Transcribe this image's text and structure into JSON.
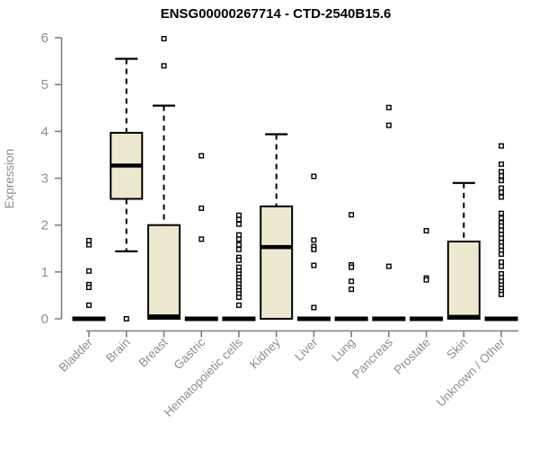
{
  "chart_data": {
    "type": "boxplot",
    "title": "ENSG00000267714 - CTD-2540B15.6",
    "ylabel": "Expression",
    "xlabel": "",
    "ylim": [
      0,
      6
    ],
    "y_ticks": [
      0,
      1,
      2,
      3,
      4,
      5,
      6
    ],
    "grid": false,
    "legend": "none",
    "colors": {
      "box_fill": "#ede8d0",
      "box_stroke": "#000000",
      "median": "#000000",
      "axis": "#7f7f7f",
      "tick_label": "#8e8e8e",
      "title": "#000000",
      "outlier_fill": "#ffffff"
    },
    "categories": [
      {
        "label": "Bladder",
        "type": "flat",
        "outliers": [
          1.67,
          1.58,
          1.02,
          0.73,
          0.67,
          0.29
        ]
      },
      {
        "label": "Brain",
        "type": "box",
        "q1": 2.56,
        "median": 3.27,
        "q3": 3.97,
        "whisker_low": 1.44,
        "whisker_high": 5.55,
        "outliers": [
          0.0
        ]
      },
      {
        "label": "Breast",
        "type": "box",
        "q1": 0,
        "median": 0.05,
        "q3": 2.0,
        "whisker_high": 4.55,
        "outliers": [
          5.98,
          5.4
        ]
      },
      {
        "label": "Gastric",
        "type": "flat",
        "outliers": [
          3.48,
          2.36,
          1.7
        ]
      },
      {
        "label": "Hematopoietic cells",
        "type": "flat",
        "outliers": [
          2.21,
          2.12,
          2.02,
          1.79,
          1.7,
          1.58,
          1.48,
          1.31,
          1.25,
          1.1,
          1.02,
          0.95,
          0.88,
          0.81,
          0.74,
          0.67,
          0.6,
          0.53,
          0.46,
          0.29
        ]
      },
      {
        "label": "Kidney",
        "type": "box",
        "q1": 0,
        "median": 1.53,
        "q3": 2.4,
        "whisker_high": 3.94,
        "outliers": []
      },
      {
        "label": "Liver",
        "type": "flat",
        "outliers": [
          3.04,
          1.68,
          1.54,
          1.48,
          1.14,
          0.24
        ]
      },
      {
        "label": "Lung",
        "type": "flat",
        "outliers": [
          2.22,
          1.15,
          1.1,
          0.8,
          0.63
        ]
      },
      {
        "label": "Pancreas",
        "type": "flat",
        "outliers": [
          4.51,
          4.13,
          1.12
        ]
      },
      {
        "label": "Prostate",
        "type": "flat",
        "outliers": [
          1.88,
          0.87,
          0.83
        ]
      },
      {
        "label": "Skin",
        "type": "box",
        "q1": 0,
        "median": 0.04,
        "q3": 1.65,
        "whisker_high": 2.9,
        "outliers": []
      },
      {
        "label": "Unknown / Other",
        "type": "flat",
        "outliers": [
          3.69,
          3.3,
          3.14,
          3.05,
          2.95,
          2.79,
          2.7,
          2.6,
          2.25,
          2.15,
          2.05,
          1.98,
          1.89,
          1.8,
          1.72,
          1.63,
          1.55,
          1.46,
          1.38,
          1.21,
          1.12,
          0.96,
          0.88,
          0.8,
          0.72,
          0.65,
          0.58,
          0.52
        ]
      }
    ]
  }
}
